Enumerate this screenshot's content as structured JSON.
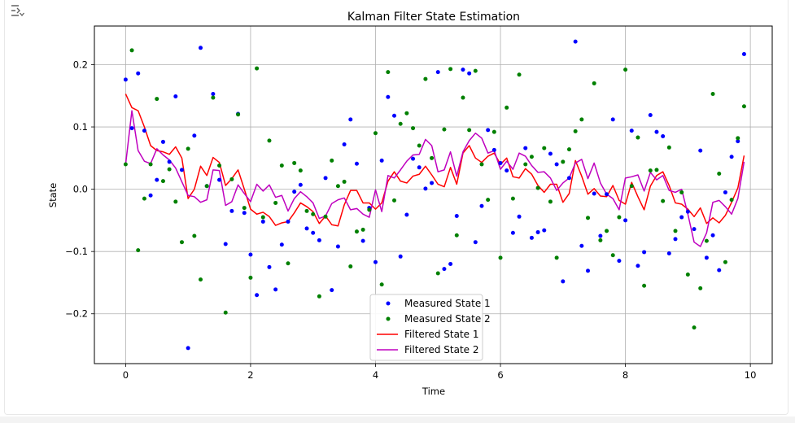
{
  "output_toggle": {
    "icon": "output-collapse-icon"
  },
  "chart_data": {
    "type": "line",
    "title": "Kalman Filter State Estimation",
    "xlabel": "Time",
    "ylabel": "State",
    "xlim": [
      -0.5,
      10.35
    ],
    "ylim": [
      -0.28,
      0.262
    ],
    "xticks": [
      0,
      2,
      4,
      6,
      8,
      10
    ],
    "xtick_labels": [
      "0",
      "2",
      "4",
      "6",
      "8",
      "10"
    ],
    "yticks": [
      -0.2,
      -0.1,
      0.0,
      0.1,
      0.2
    ],
    "ytick_labels": [
      "−0.2",
      "−0.1",
      "0.0",
      "0.1",
      "0.2"
    ],
    "grid": true,
    "legend_position": "bottom-center",
    "series": [
      {
        "name": "Measured State 1",
        "kind": "scatter",
        "color": "#0000ff",
        "x": [
          0.0,
          0.1,
          0.2,
          0.3,
          0.4,
          0.5,
          0.6,
          0.7,
          0.8,
          0.9,
          1.0,
          1.1,
          1.2,
          1.3,
          1.4,
          1.5,
          1.6,
          1.7,
          1.8,
          1.9,
          2.0,
          2.1,
          2.2,
          2.3,
          2.4,
          2.5,
          2.6,
          2.7,
          2.8,
          2.9,
          3.0,
          3.1,
          3.2,
          3.3,
          3.4,
          3.5,
          3.6,
          3.7,
          3.8,
          3.9,
          4.0,
          4.1,
          4.2,
          4.3,
          4.4,
          4.5,
          4.6,
          4.7,
          4.8,
          4.9,
          5.0,
          5.1,
          5.2,
          5.3,
          5.4,
          5.5,
          5.6,
          5.7,
          5.8,
          5.9,
          6.0,
          6.1,
          6.2,
          6.3,
          6.4,
          6.5,
          6.6,
          6.7,
          6.8,
          6.9,
          7.0,
          7.1,
          7.2,
          7.3,
          7.4,
          7.5,
          7.6,
          7.7,
          7.8,
          7.9,
          8.0,
          8.1,
          8.2,
          8.3,
          8.4,
          8.5,
          8.6,
          8.7,
          8.8,
          8.9,
          9.0,
          9.1,
          9.2,
          9.3,
          9.4,
          9.5,
          9.6,
          9.7,
          9.8,
          9.9
        ],
        "y": [
          0.176,
          0.098,
          0.186,
          0.094,
          -0.01,
          0.015,
          0.076,
          0.044,
          0.149,
          0.031,
          -0.255,
          0.086,
          0.227,
          0.005,
          0.153,
          0.015,
          -0.088,
          -0.035,
          0.121,
          -0.038,
          -0.105,
          -0.17,
          -0.052,
          -0.125,
          -0.161,
          -0.089,
          -0.052,
          -0.004,
          0.007,
          -0.063,
          -0.07,
          -0.082,
          0.018,
          -0.162,
          -0.092,
          0.072,
          0.112,
          0.041,
          -0.083,
          -0.03,
          -0.117,
          0.046,
          0.148,
          0.118,
          -0.108,
          -0.041,
          0.049,
          0.035,
          0.001,
          0.01,
          0.188,
          -0.128,
          -0.12,
          -0.043,
          0.192,
          0.186,
          -0.085,
          -0.027,
          0.095,
          0.063,
          0.042,
          0.03,
          -0.07,
          -0.044,
          0.066,
          -0.078,
          -0.069,
          -0.066,
          0.057,
          0.04,
          -0.148,
          0.018,
          0.237,
          -0.091,
          -0.131,
          -0.007,
          -0.075,
          -0.008,
          0.112,
          -0.115,
          -0.05,
          0.094,
          -0.123,
          -0.101,
          0.119,
          0.092,
          0.085,
          -0.103,
          -0.08,
          -0.045,
          -0.036,
          -0.064,
          0.062,
          -0.11,
          -0.074,
          -0.13,
          -0.005,
          0.052,
          0.077,
          0.217
        ]
      },
      {
        "name": "Measured State 2",
        "kind": "scatter",
        "color": "#008000",
        "x": [
          0.0,
          0.1,
          0.2,
          0.3,
          0.4,
          0.5,
          0.6,
          0.7,
          0.8,
          0.9,
          1.0,
          1.1,
          1.2,
          1.3,
          1.4,
          1.5,
          1.6,
          1.7,
          1.8,
          1.9,
          2.0,
          2.1,
          2.2,
          2.3,
          2.4,
          2.5,
          2.6,
          2.7,
          2.8,
          2.9,
          3.0,
          3.1,
          3.2,
          3.3,
          3.4,
          3.5,
          3.6,
          3.7,
          3.8,
          3.9,
          4.0,
          4.1,
          4.2,
          4.3,
          4.4,
          4.5,
          4.6,
          4.7,
          4.8,
          4.9,
          5.0,
          5.1,
          5.2,
          5.3,
          5.4,
          5.5,
          5.6,
          5.7,
          5.8,
          5.9,
          6.0,
          6.1,
          6.2,
          6.3,
          6.4,
          6.5,
          6.6,
          6.7,
          6.8,
          6.9,
          7.0,
          7.1,
          7.2,
          7.3,
          7.4,
          7.5,
          7.6,
          7.7,
          7.8,
          7.9,
          8.0,
          8.1,
          8.2,
          8.3,
          8.4,
          8.5,
          8.6,
          8.7,
          8.8,
          8.9,
          9.0,
          9.1,
          9.2,
          9.3,
          9.4,
          9.5,
          9.6,
          9.7,
          9.8,
          9.9
        ],
        "y": [
          0.04,
          0.223,
          -0.098,
          -0.015,
          0.04,
          0.145,
          0.013,
          0.032,
          -0.02,
          -0.085,
          0.065,
          -0.075,
          -0.145,
          0.005,
          0.147,
          0.038,
          -0.198,
          0.016,
          0.12,
          -0.03,
          -0.142,
          0.194,
          -0.045,
          0.078,
          -0.022,
          0.038,
          -0.119,
          0.042,
          0.03,
          -0.035,
          -0.04,
          -0.172,
          -0.044,
          0.046,
          0.005,
          0.012,
          -0.124,
          -0.068,
          -0.065,
          -0.033,
          0.09,
          -0.153,
          0.188,
          -0.018,
          0.105,
          0.122,
          0.098,
          0.07,
          0.177,
          0.05,
          -0.135,
          0.096,
          0.193,
          -0.074,
          0.147,
          0.095,
          0.19,
          0.04,
          -0.017,
          0.092,
          -0.11,
          0.131,
          -0.015,
          0.184,
          0.04,
          0.052,
          0.002,
          0.066,
          -0.02,
          -0.11,
          0.044,
          0.064,
          0.093,
          0.112,
          -0.046,
          0.17,
          -0.082,
          -0.067,
          -0.106,
          -0.045,
          0.192,
          0.005,
          0.083,
          -0.155,
          0.03,
          0.031,
          -0.019,
          0.067,
          -0.067,
          -0.005,
          -0.137,
          -0.222,
          -0.159,
          -0.083,
          0.153,
          0.025,
          -0.117,
          -0.017,
          0.082,
          0.133
        ]
      },
      {
        "name": "Filtered State 1",
        "kind": "line",
        "color": "#ff0000",
        "x": [
          0.0,
          0.1,
          0.2,
          0.3,
          0.4,
          0.5,
          0.6,
          0.7,
          0.8,
          0.9,
          1.0,
          1.1,
          1.2,
          1.3,
          1.4,
          1.5,
          1.6,
          1.7,
          1.8,
          1.9,
          2.0,
          2.1,
          2.2,
          2.3,
          2.4,
          2.5,
          2.6,
          2.7,
          2.8,
          2.9,
          3.0,
          3.1,
          3.2,
          3.3,
          3.4,
          3.5,
          3.6,
          3.7,
          3.8,
          3.9,
          4.0,
          4.1,
          4.2,
          4.3,
          4.4,
          4.5,
          4.6,
          4.7,
          4.8,
          4.9,
          5.0,
          5.1,
          5.2,
          5.3,
          5.4,
          5.5,
          5.6,
          5.7,
          5.8,
          5.9,
          6.0,
          6.1,
          6.2,
          6.3,
          6.4,
          6.5,
          6.6,
          6.7,
          6.8,
          6.9,
          7.0,
          7.1,
          7.2,
          7.3,
          7.4,
          7.5,
          7.6,
          7.7,
          7.8,
          7.9,
          8.0,
          8.1,
          8.2,
          8.3,
          8.4,
          8.5,
          8.6,
          8.7,
          8.8,
          8.9,
          9.0,
          9.1,
          9.2,
          9.3,
          9.4,
          9.5,
          9.6,
          9.7,
          9.8,
          9.9
        ],
        "y": [
          0.153,
          0.131,
          0.126,
          0.1,
          0.07,
          0.062,
          0.06,
          0.056,
          0.068,
          0.05,
          -0.015,
          0.0,
          0.037,
          0.022,
          0.051,
          0.043,
          0.006,
          0.017,
          0.031,
          0.0,
          -0.032,
          -0.04,
          -0.037,
          -0.044,
          -0.058,
          -0.054,
          -0.052,
          -0.038,
          -0.022,
          -0.028,
          -0.036,
          -0.055,
          -0.043,
          -0.057,
          -0.059,
          -0.025,
          -0.002,
          -0.002,
          -0.022,
          -0.022,
          -0.032,
          -0.022,
          0.013,
          0.028,
          0.013,
          0.01,
          0.021,
          0.024,
          0.037,
          0.023,
          0.008,
          0.004,
          0.035,
          0.008,
          0.058,
          0.07,
          0.05,
          0.043,
          0.053,
          0.058,
          0.04,
          0.05,
          0.02,
          0.018,
          0.033,
          0.024,
          0.006,
          -0.005,
          0.008,
          0.008,
          -0.021,
          -0.007,
          0.046,
          0.021,
          -0.008,
          0.001,
          -0.011,
          -0.012,
          0.006,
          -0.018,
          -0.024,
          0.011,
          -0.012,
          -0.033,
          0.005,
          0.022,
          0.028,
          0.006,
          -0.022,
          -0.024,
          -0.032,
          -0.044,
          -0.03,
          -0.055,
          -0.046,
          -0.054,
          -0.042,
          -0.021,
          0.002,
          0.054
        ]
      },
      {
        "name": "Filtered State 2",
        "kind": "line",
        "color": "#bf00bf",
        "x": [
          0.0,
          0.1,
          0.2,
          0.3,
          0.4,
          0.5,
          0.6,
          0.7,
          0.8,
          0.9,
          1.0,
          1.1,
          1.2,
          1.3,
          1.4,
          1.5,
          1.6,
          1.7,
          1.8,
          1.9,
          2.0,
          2.1,
          2.2,
          2.3,
          2.4,
          2.5,
          2.6,
          2.7,
          2.8,
          2.9,
          3.0,
          3.1,
          3.2,
          3.3,
          3.4,
          3.5,
          3.6,
          3.7,
          3.8,
          3.9,
          4.0,
          4.1,
          4.2,
          4.3,
          4.4,
          4.5,
          4.6,
          4.7,
          4.8,
          4.9,
          5.0,
          5.1,
          5.2,
          5.3,
          5.4,
          5.5,
          5.6,
          5.7,
          5.8,
          5.9,
          6.0,
          6.1,
          6.2,
          6.3,
          6.4,
          6.5,
          6.6,
          6.7,
          6.8,
          6.9,
          7.0,
          7.1,
          7.2,
          7.3,
          7.4,
          7.5,
          7.6,
          7.7,
          7.8,
          7.9,
          8.0,
          8.1,
          8.2,
          8.3,
          8.4,
          8.5,
          8.6,
          8.7,
          8.8,
          8.9,
          9.0,
          9.1,
          9.2,
          9.3,
          9.4,
          9.5,
          9.6,
          9.7,
          9.8,
          9.9
        ],
        "y": [
          0.04,
          0.126,
          0.062,
          0.045,
          0.041,
          0.065,
          0.055,
          0.047,
          0.034,
          0.012,
          -0.01,
          -0.012,
          -0.021,
          -0.017,
          0.031,
          0.03,
          -0.026,
          -0.02,
          0.007,
          -0.007,
          -0.02,
          0.008,
          -0.003,
          0.007,
          -0.013,
          -0.01,
          -0.035,
          -0.015,
          -0.004,
          -0.012,
          -0.022,
          -0.047,
          -0.043,
          -0.023,
          -0.017,
          -0.014,
          -0.033,
          -0.031,
          -0.04,
          -0.045,
          -0.001,
          -0.036,
          0.022,
          0.018,
          0.031,
          0.045,
          0.055,
          0.056,
          0.08,
          0.07,
          0.028,
          0.031,
          0.06,
          0.021,
          0.06,
          0.078,
          0.09,
          0.082,
          0.058,
          0.062,
          0.032,
          0.045,
          0.032,
          0.058,
          0.053,
          0.038,
          0.027,
          0.028,
          0.018,
          -0.002,
          0.01,
          0.018,
          0.042,
          0.048,
          0.017,
          0.042,
          0.01,
          -0.008,
          -0.015,
          -0.033,
          0.018,
          0.02,
          0.023,
          -0.003,
          0.027,
          0.015,
          0.022,
          -0.002,
          -0.005,
          0.0,
          -0.04,
          -0.085,
          -0.092,
          -0.07,
          -0.021,
          -0.018,
          -0.028,
          -0.04,
          -0.015,
          0.044
        ]
      }
    ]
  }
}
